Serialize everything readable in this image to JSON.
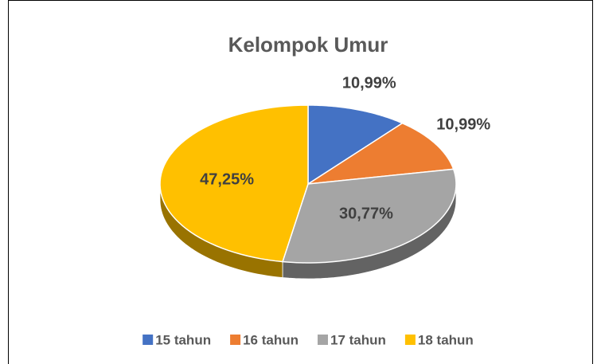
{
  "chart_data": {
    "type": "pie",
    "title": "Kelompok Umur",
    "categories": [
      "15 tahun",
      "16 tahun",
      "17 tahun",
      "18 tahun"
    ],
    "values": [
      10.99,
      10.99,
      30.77,
      47.25
    ],
    "value_labels": [
      "10,99%",
      "10,99%",
      "30,77%",
      "47,25%"
    ],
    "colors": [
      "#4472c4",
      "#ed7d31",
      "#a5a5a5",
      "#ffc000"
    ],
    "legend": "bottom"
  }
}
